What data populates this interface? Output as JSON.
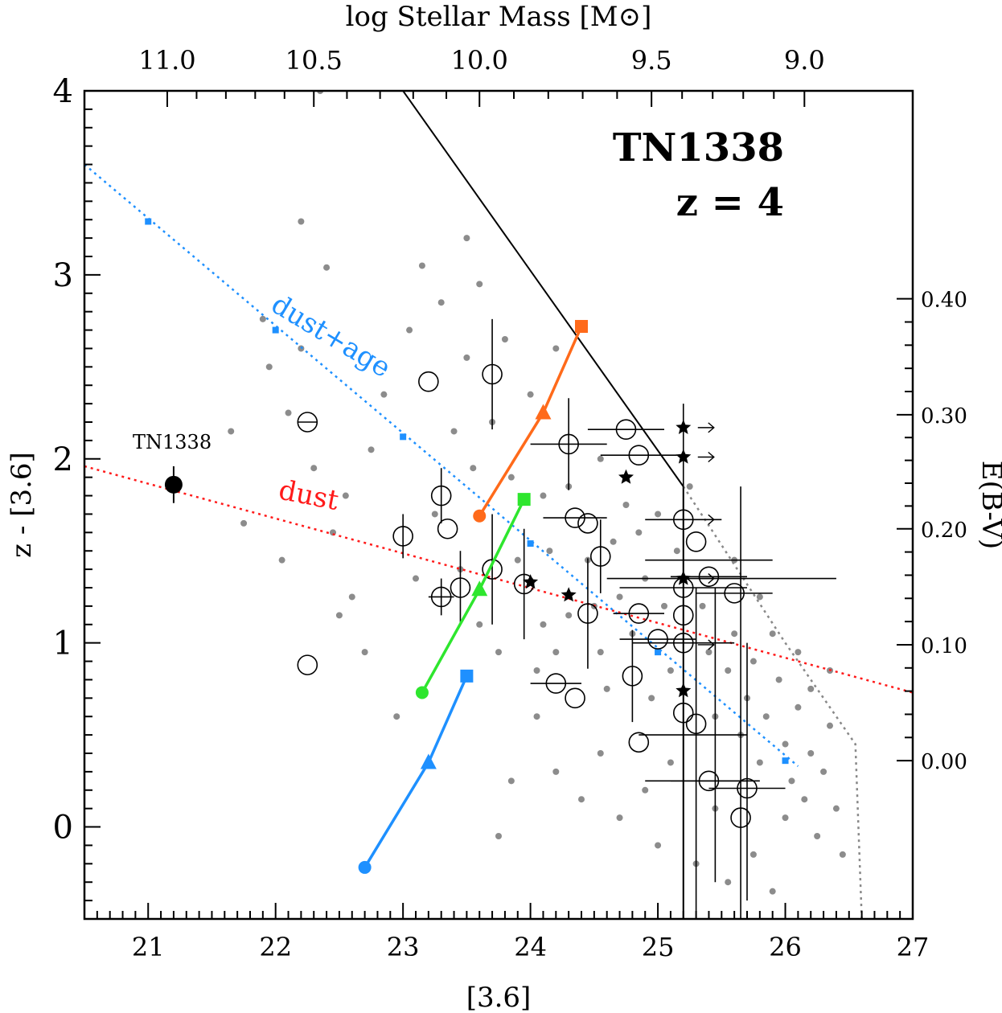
{
  "chart_data": {
    "type": "scatter",
    "title": "TN1338",
    "subtitle": "z = 4",
    "xlabel": "[3.6]",
    "ylabel": "z - [3.6]",
    "x2label": "log Stellar Mass [M⊙]",
    "y2label": "E(B-V)",
    "xlim": [
      20.5,
      27
    ],
    "ylim": [
      -0.5,
      4
    ],
    "x_ticks": [
      "21",
      "22",
      "23",
      "24",
      "25",
      "26",
      "27"
    ],
    "y_ticks": [
      "0",
      "1",
      "2",
      "3",
      "4"
    ],
    "x2_ticks": [
      {
        "label": "11.0",
        "x": 21.15
      },
      {
        "label": "10.5",
        "x": 22.3
      },
      {
        "label": "10.0",
        "x": 23.6
      },
      {
        "label": "9.5",
        "x": 24.95
      },
      {
        "label": "9.0",
        "x": 26.15
      }
    ],
    "y2_ticks": [
      {
        "label": "0.00",
        "y": 0.36
      },
      {
        "label": "0.10",
        "y": 0.99
      },
      {
        "label": "0.20",
        "y": 1.62
      },
      {
        "label": "0.30",
        "y": 2.24
      },
      {
        "label": "0.40",
        "y": 2.87
      }
    ],
    "annotations": {
      "tn1338_label": "TN1338",
      "dust_label": "dust",
      "dust_age_label": "dust+age"
    },
    "tn1338_point": {
      "x": 21.2,
      "y": 1.86,
      "yerr": 0.1
    },
    "colors": {
      "field": "#8c8c8c",
      "dust": "#ff1a1a",
      "dust_age": "#1e90ff",
      "orange": "#ff6a1a",
      "green": "#2ee62e",
      "blue": "#1e90ff",
      "black": "#000000"
    },
    "series": [
      {
        "name": "dust",
        "style": "dotted",
        "color": "#ff1a1a",
        "x": [
          20.5,
          27
        ],
        "y": [
          1.96,
          0.73
        ]
      },
      {
        "name": "dust+age",
        "style": "dotted",
        "color": "#1e90ff",
        "x": [
          20.5,
          26.1
        ],
        "y": [
          3.6,
          0.33
        ],
        "markers_x": [
          21,
          22,
          23,
          24,
          25,
          26
        ],
        "markers_y": [
          3.29,
          2.7,
          2.12,
          1.54,
          0.95,
          0.36
        ]
      },
      {
        "name": "selection-solid",
        "style": "solid",
        "color": "#000000",
        "x": [
          23.0,
          25.2,
          25.2
        ],
        "y": [
          4.0,
          1.85,
          -0.5
        ]
      },
      {
        "name": "selection-dotted",
        "style": "dotted",
        "color": "#888888",
        "x": [
          25.2,
          26.0,
          26.55,
          26.6
        ],
        "y": [
          1.85,
          1.0,
          0.45,
          -0.5
        ]
      },
      {
        "name": "track-orange",
        "style": "solid",
        "color": "#ff6a1a",
        "x": [
          23.6,
          24.1,
          24.4
        ],
        "y": [
          1.69,
          2.25,
          2.72
        ],
        "markers": [
          "circle",
          "triangle",
          "square"
        ]
      },
      {
        "name": "track-green",
        "style": "solid",
        "color": "#2ee62e",
        "x": [
          23.15,
          23.6,
          23.95
        ],
        "y": [
          0.73,
          1.29,
          1.78
        ],
        "markers": [
          "circle",
          "triangle",
          "square"
        ]
      },
      {
        "name": "track-blue",
        "style": "solid",
        "color": "#1e90ff",
        "x": [
          22.7,
          23.2,
          23.5
        ],
        "y": [
          -0.22,
          0.35,
          0.82
        ],
        "markers": [
          "circle",
          "triangle",
          "square"
        ]
      }
    ],
    "candidates": [
      {
        "x": 22.25,
        "y": 0.88
      },
      {
        "x": 22.25,
        "y": 2.2,
        "xerr": 0.08
      },
      {
        "x": 23.0,
        "y": 1.58,
        "yerr": 0.12
      },
      {
        "x": 23.2,
        "y": 2.42
      },
      {
        "x": 23.3,
        "y": 1.8,
        "yerr": 0.15
      },
      {
        "x": 23.35,
        "y": 1.62
      },
      {
        "x": 23.3,
        "y": 1.25,
        "yerr": 0.1,
        "xerr": 0.1
      },
      {
        "x": 23.45,
        "y": 1.3,
        "yerr": 0.2
      },
      {
        "x": 23.7,
        "y": 2.46,
        "yerr": 0.3
      },
      {
        "x": 23.7,
        "y": 1.4,
        "yerr": 0.3
      },
      {
        "x": 23.95,
        "y": 1.32,
        "yerr": 0.3
      },
      {
        "x": 24.2,
        "y": 0.78,
        "xerr": 0.2
      },
      {
        "x": 24.3,
        "y": 2.08,
        "xerr": 0.3,
        "yerr": 0.25
      },
      {
        "x": 24.35,
        "y": 1.68,
        "xerr": 0.25
      },
      {
        "x": 24.35,
        "y": 0.7
      },
      {
        "x": 24.45,
        "y": 1.65
      },
      {
        "x": 24.45,
        "y": 1.16,
        "yerr": 0.3
      },
      {
        "x": 24.55,
        "y": 1.47,
        "yerr": 0.2
      },
      {
        "x": 24.75,
        "y": 2.16,
        "xerr": 0.3
      },
      {
        "x": 24.8,
        "y": 0.82,
        "yerr": 0.25
      },
      {
        "x": 24.85,
        "y": 2.02,
        "xerr": 0.3
      },
      {
        "x": 24.85,
        "y": 1.16,
        "xerr": 0.2
      },
      {
        "x": 24.85,
        "y": 0.46
      },
      {
        "x": 25.0,
        "y": 1.02,
        "xerr": 0.3
      },
      {
        "x": 25.2,
        "y": 1.67,
        "xerr": 0.3
      },
      {
        "x": 25.2,
        "y": 1.3,
        "xerr": 0.5
      },
      {
        "x": 25.2,
        "y": 1.15
      },
      {
        "x": 25.2,
        "y": 1.0
      },
      {
        "x": 25.2,
        "y": 0.62
      },
      {
        "x": 25.3,
        "y": 1.55
      },
      {
        "x": 25.3,
        "y": 0.56
      },
      {
        "x": 25.4,
        "y": 1.36,
        "xerr": 0.3
      },
      {
        "x": 25.4,
        "y": 0.25,
        "xerr": 0.3
      },
      {
        "x": 25.6,
        "y": 1.27,
        "xerr": 0.3
      },
      {
        "x": 25.65,
        "y": 0.05
      },
      {
        "x": 25.7,
        "y": 0.21,
        "xerr": 0.3
      }
    ],
    "confirmed": [
      {
        "x": 24.0,
        "y": 1.33
      },
      {
        "x": 24.3,
        "y": 1.26
      },
      {
        "x": 24.75,
        "y": 1.9
      },
      {
        "x": 25.2,
        "y": 2.17
      },
      {
        "x": 25.2,
        "y": 2.01
      },
      {
        "x": 25.2,
        "y": 1.35
      },
      {
        "x": 25.2,
        "y": 0.74
      }
    ],
    "field": [
      [
        21.9,
        2.76
      ],
      [
        22.2,
        3.29
      ],
      [
        22.4,
        3.04
      ],
      [
        21.65,
        2.15
      ],
      [
        21.95,
        2.5
      ],
      [
        22.1,
        2.25
      ],
      [
        22.3,
        1.95
      ],
      [
        22.55,
        1.8
      ],
      [
        22.75,
        2.05
      ],
      [
        21.75,
        1.65
      ],
      [
        22.05,
        1.45
      ],
      [
        22.45,
        1.6
      ],
      [
        22.6,
        1.25
      ],
      [
        22.85,
        2.35
      ],
      [
        23.05,
        2.7
      ],
      [
        23.15,
        3.05
      ],
      [
        23.3,
        2.85
      ],
      [
        23.5,
        3.2
      ],
      [
        23.6,
        2.95
      ],
      [
        23.4,
        2.15
      ],
      [
        23.55,
        1.95
      ],
      [
        23.7,
        2.2
      ],
      [
        23.85,
        1.9
      ],
      [
        23.6,
        1.1
      ],
      [
        23.75,
        0.95
      ],
      [
        23.9,
        1.45
      ],
      [
        24.1,
        1.1
      ],
      [
        24.05,
        0.85
      ],
      [
        24.2,
        0.95
      ],
      [
        24.15,
        1.5
      ],
      [
        24.3,
        1.15
      ],
      [
        24.45,
        1.45
      ],
      [
        24.55,
        0.95
      ],
      [
        24.6,
        0.75
      ],
      [
        24.7,
        1.25
      ],
      [
        24.8,
        1.05
      ],
      [
        24.65,
        1.55
      ],
      [
        24.9,
        1.35
      ],
      [
        24.95,
        0.7
      ],
      [
        25.05,
        1.2
      ],
      [
        25.1,
        0.85
      ],
      [
        25.15,
        1.5
      ],
      [
        25.35,
        1.2
      ],
      [
        25.4,
        0.95
      ],
      [
        25.45,
        0.6
      ],
      [
        25.55,
        0.85
      ],
      [
        25.6,
        1.05
      ],
      [
        25.65,
        0.5
      ],
      [
        25.7,
        0.7
      ],
      [
        25.75,
        0.9
      ],
      [
        25.8,
        0.35
      ],
      [
        25.85,
        0.6
      ],
      [
        25.9,
        1.05
      ],
      [
        25.95,
        0.8
      ],
      [
        26.0,
        0.45
      ],
      [
        26.05,
        0.25
      ],
      [
        26.1,
        0.65
      ],
      [
        26.15,
        0.15
      ],
      [
        26.2,
        0.4
      ],
      [
        26.25,
        -0.05
      ],
      [
        26.3,
        0.3
      ],
      [
        26.35,
        0.55
      ],
      [
        26.4,
        0.1
      ],
      [
        26.45,
        -0.15
      ],
      [
        24.2,
        0.3
      ],
      [
        24.4,
        0.15
      ],
      [
        24.55,
        0.4
      ],
      [
        24.7,
        0.05
      ],
      [
        24.9,
        0.2
      ],
      [
        25.0,
        -0.1
      ],
      [
        25.1,
        0.35
      ],
      [
        25.3,
        -0.2
      ],
      [
        25.45,
        0.1
      ],
      [
        25.55,
        -0.3
      ],
      [
        25.75,
        -0.15
      ],
      [
        25.9,
        -0.35
      ],
      [
        26.0,
        0.05
      ],
      [
        24.05,
        0.6
      ],
      [
        23.85,
        0.25
      ],
      [
        23.75,
        -0.05
      ],
      [
        22.95,
        0.6
      ],
      [
        22.7,
        0.95
      ],
      [
        22.5,
        1.15
      ],
      [
        23.1,
        1.35
      ],
      [
        23.25,
        1.7
      ],
      [
        24.0,
        2.35
      ],
      [
        24.2,
        2.6
      ],
      [
        23.8,
        2.65
      ],
      [
        24.55,
        2.0
      ],
      [
        24.75,
        1.75
      ],
      [
        24.85,
        1.6
      ],
      [
        25.0,
        1.7
      ],
      [
        25.25,
        1.85
      ],
      [
        25.6,
        1.45
      ],
      [
        25.8,
        1.25
      ],
      [
        26.1,
        0.95
      ],
      [
        26.2,
        0.75
      ],
      [
        26.35,
        0.85
      ],
      [
        22.35,
        4.0
      ],
      [
        22.2,
        2.6
      ],
      [
        23.5,
        2.55
      ],
      [
        24.1,
        1.8
      ],
      [
        23.45,
        1.4
      ],
      [
        24.3,
        1.85
      ],
      [
        24.5,
        1.2
      ]
    ]
  }
}
